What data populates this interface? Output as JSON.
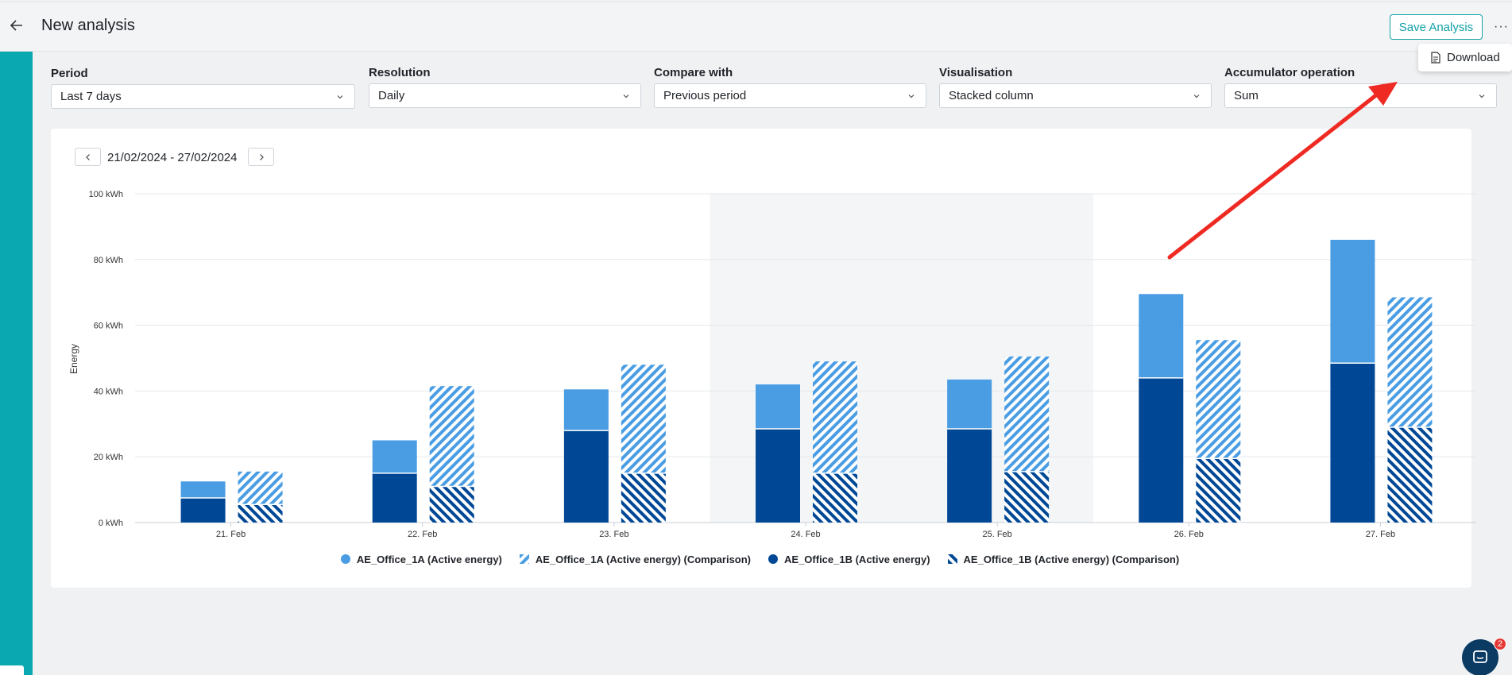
{
  "header": {
    "title": "New analysis",
    "save_label": "Save Analysis",
    "more_label": "···",
    "menu": {
      "download_label": "Download"
    }
  },
  "filters": [
    {
      "label": "Period",
      "value": "Last 7 days"
    },
    {
      "label": "Resolution",
      "value": "Daily"
    },
    {
      "label": "Compare with",
      "value": "Previous period"
    },
    {
      "label": "Visualisation",
      "value": "Stacked column"
    },
    {
      "label": "Accumulator operation",
      "value": "Sum"
    }
  ],
  "date_range": "21/02/2024 - 27/02/2024",
  "chat": {
    "badge_count": "2"
  },
  "colors": {
    "accent": "#14a1a8",
    "sidebar": "#0aa8b0",
    "series_1a": "#4a9de3",
    "series_1b": "#004896",
    "arrow": "#ef2a23",
    "weekend_band": "#f3f5f6"
  },
  "chart_data": {
    "type": "bar",
    "stacked": true,
    "title": "",
    "ylabel": "Energy",
    "xlabel": "",
    "ylim": [
      0,
      100
    ],
    "yticks": [
      0,
      20,
      40,
      60,
      80,
      100
    ],
    "ytick_labels": [
      "0 kWh",
      "20 kWh",
      "40 kWh",
      "60 kWh",
      "80 kWh",
      "100 kWh"
    ],
    "categories": [
      "21. Feb",
      "22. Feb",
      "23. Feb",
      "24. Feb",
      "25. Feb",
      "26. Feb",
      "27. Feb"
    ],
    "highlighted_categories": [
      "24. Feb",
      "25. Feb"
    ],
    "series": [
      {
        "name": "AE_Office_1B (Active energy)",
        "stack": "current",
        "pattern": "solid",
        "color": "#004896",
        "values": [
          7.5,
          15,
          28,
          28.5,
          28.5,
          44,
          48.5
        ]
      },
      {
        "name": "AE_Office_1A (Active energy)",
        "stack": "current",
        "pattern": "solid",
        "color": "#4a9de3",
        "values": [
          5,
          10,
          12.5,
          13.5,
          15,
          25.5,
          37.5
        ]
      },
      {
        "name": "AE_Office_1B (Active energy) (Comparison)",
        "stack": "comparison",
        "pattern": "hatched",
        "color": "#004896",
        "values": [
          5.5,
          11,
          15,
          15,
          15.5,
          19.5,
          29
        ]
      },
      {
        "name": "AE_Office_1A (Active energy) (Comparison)",
        "stack": "comparison",
        "pattern": "hatched",
        "color": "#4a9de3",
        "values": [
          10,
          30.5,
          33,
          34,
          35,
          36,
          39.5
        ]
      }
    ],
    "legend": [
      {
        "name": "AE_Office_1A (Active energy)",
        "pattern": "solid",
        "color": "#4a9de3"
      },
      {
        "name": "AE_Office_1A (Active energy) (Comparison)",
        "pattern": "hatched",
        "color": "#4a9de3"
      },
      {
        "name": "AE_Office_1B (Active energy)",
        "pattern": "solid",
        "color": "#004896"
      },
      {
        "name": "AE_Office_1B (Active energy) (Comparison)",
        "pattern": "hatched",
        "color": "#004896"
      }
    ]
  }
}
